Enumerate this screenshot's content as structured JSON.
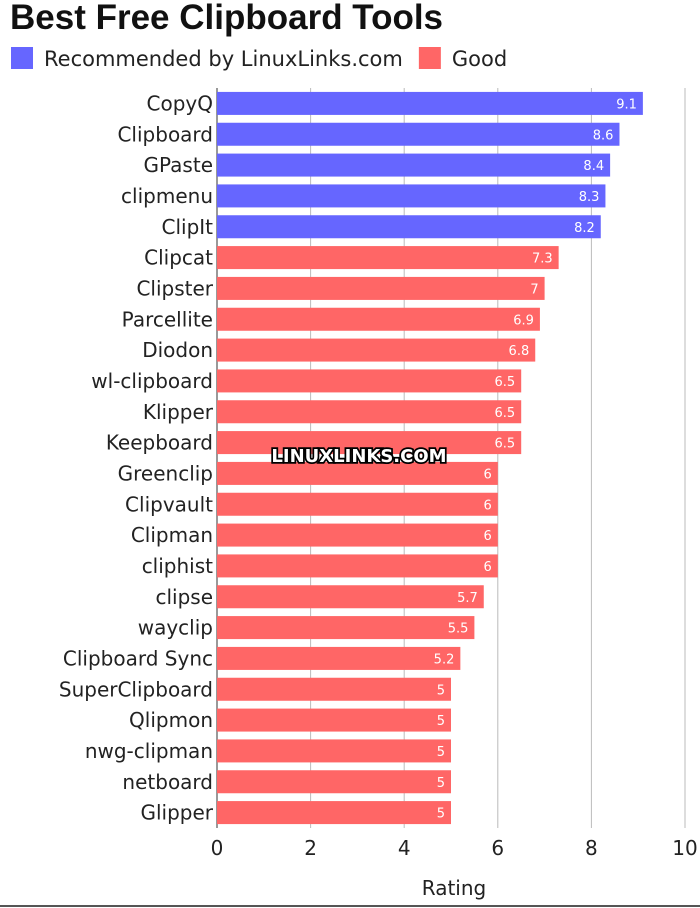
{
  "chart_data": {
    "type": "bar",
    "orientation": "horizontal",
    "title": "Best Free Clipboard Tools",
    "xlabel": "Rating",
    "ylabel": "",
    "xlim": [
      0,
      10
    ],
    "xticks": [
      0,
      2,
      4,
      6,
      8,
      10
    ],
    "grid": true,
    "legend_position": "top-left",
    "legend": [
      {
        "name": "Recommended by LinuxLinks.com",
        "color": "#6666ff"
      },
      {
        "name": "Good",
        "color": "#ff6666"
      }
    ],
    "categories": [
      "CopyQ",
      "Clipboard",
      "GPaste",
      "clipmenu",
      "ClipIt",
      "Clipcat",
      "Clipster",
      "Parcellite",
      "Diodon",
      "wl-clipboard",
      "Klipper",
      "Keepboard",
      "Greenclip",
      "Clipvault",
      "Clipman",
      "cliphist",
      "clipse",
      "wayclip",
      "Clipboard Sync",
      "SuperClipboard",
      "Qlipmon",
      "nwg-clipman",
      "netboard",
      "Glipper"
    ],
    "values": [
      9.1,
      8.6,
      8.4,
      8.3,
      8.2,
      7.3,
      7,
      6.9,
      6.8,
      6.5,
      6.5,
      6.5,
      6,
      6,
      6,
      6,
      5.7,
      5.5,
      5.2,
      5,
      5,
      5,
      5,
      5
    ],
    "value_labels": [
      "9.1",
      "8.6",
      "8.4",
      "8.3",
      "8.2",
      "7.3",
      "7",
      "6.9",
      "6.8",
      "6.5",
      "6.5",
      "6.5",
      "6",
      "6",
      "6",
      "6",
      "5.7",
      "5.5",
      "5.2",
      "5",
      "5",
      "5",
      "5",
      "5"
    ],
    "groups": [
      0,
      0,
      0,
      0,
      0,
      1,
      1,
      1,
      1,
      1,
      1,
      1,
      1,
      1,
      1,
      1,
      1,
      1,
      1,
      1,
      1,
      1,
      1,
      1
    ],
    "annotation": "LINUXLINKS.COM"
  }
}
